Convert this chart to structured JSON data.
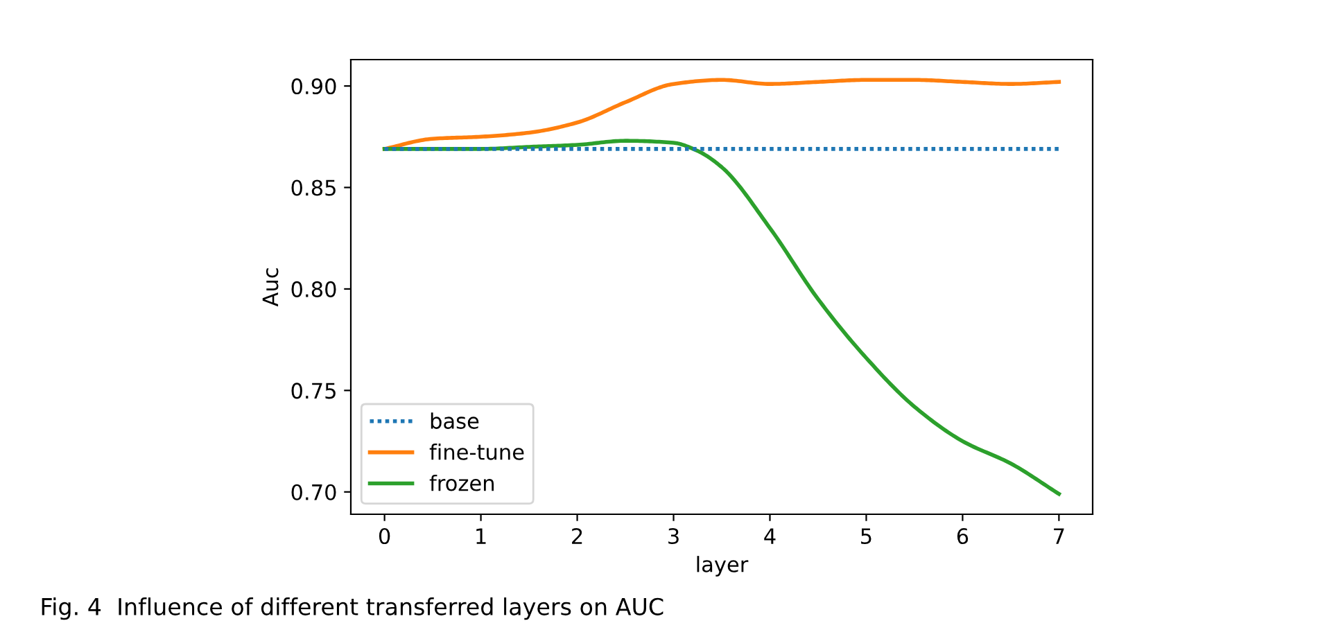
{
  "chart_data": {
    "type": "line",
    "xlabel": "layer",
    "ylabel": "Auc",
    "annotations": [
      "Fig. 4  Influence of different transferred layers on AUC"
    ],
    "xlim": [
      -0.35,
      7.35
    ],
    "ylim": [
      0.689,
      0.913
    ],
    "xticks": [
      0,
      1,
      2,
      3,
      4,
      5,
      6,
      7
    ],
    "yticks": [
      {
        "value": 0.7,
        "label": "0.70"
      },
      0.75,
      {
        "value": 0.8,
        "label": "0.80"
      },
      0.85,
      {
        "value": 0.9,
        "label": "0.90"
      }
    ],
    "grid": false,
    "legend": "bottom left",
    "series": [
      {
        "name": "base",
        "color": "#1f77b4",
        "line_style": "dotted",
        "x": [
          0,
          7
        ],
        "values": [
          0.869,
          0.869
        ]
      },
      {
        "name": "fine-tune",
        "color": "#ff7f0e",
        "line_style": "solid",
        "x": [
          0,
          0.5,
          1,
          1.5,
          2,
          2.5,
          3,
          3.5,
          4,
          4.5,
          5,
          5.5,
          6,
          6.5,
          7
        ],
        "values": [
          0.869,
          0.874,
          0.875,
          0.877,
          0.882,
          0.892,
          0.901,
          0.903,
          0.901,
          0.902,
          0.903,
          0.903,
          0.902,
          0.901,
          0.902
        ]
      },
      {
        "name": "frozen",
        "color": "#2ca02c",
        "line_style": "solid",
        "x": [
          0,
          1,
          1.5,
          2,
          2.5,
          3,
          3.25,
          3.5,
          4,
          4.5,
          5,
          5.5,
          6,
          6.5,
          7
        ],
        "values": [
          0.869,
          0.869,
          0.87,
          0.871,
          0.873,
          0.872,
          0.868,
          0.86,
          0.83,
          0.795,
          0.766,
          0.742,
          0.725,
          0.714,
          0.699
        ]
      }
    ]
  }
}
